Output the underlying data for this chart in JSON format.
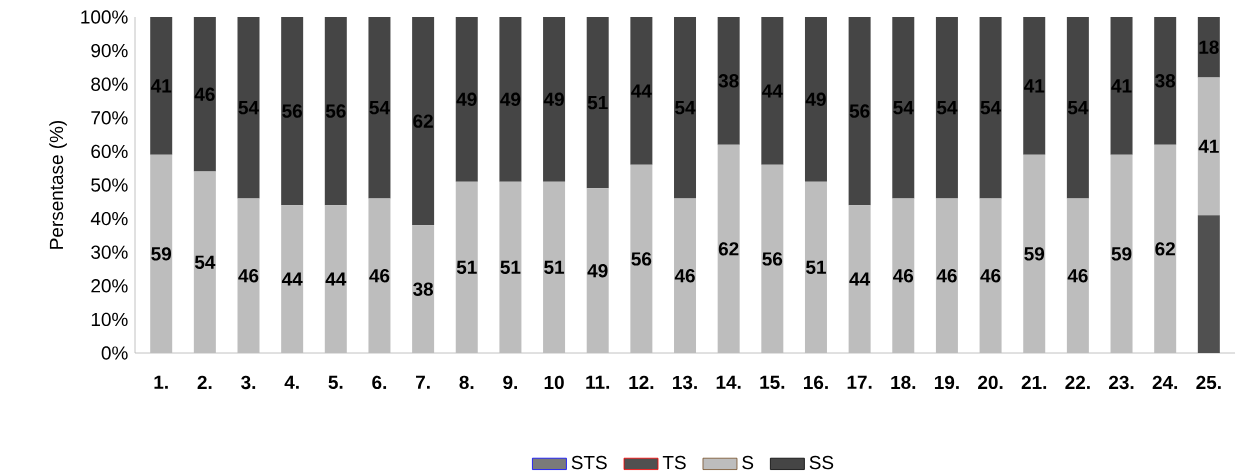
{
  "chart_data": {
    "type": "bar",
    "stacked": true,
    "ylabel": "Persentase (%)",
    "categories": [
      "1.",
      "2.",
      "3.",
      "4.",
      "5.",
      "6.",
      "7.",
      "8.",
      "9.",
      "10",
      "11.",
      "12.",
      "13.",
      "14.",
      "15.",
      "16.",
      "17.",
      "18.",
      "19.",
      "20.",
      "21.",
      "22.",
      "23.",
      "24.",
      "25."
    ],
    "ylim": [
      0,
      100
    ],
    "yticks": [
      {
        "value": 0,
        "label": "0%"
      },
      {
        "value": 10,
        "label": "10%"
      },
      {
        "value": 20,
        "label": "20%"
      },
      {
        "value": 30,
        "label": "30%"
      },
      {
        "value": 40,
        "label": "40%"
      },
      {
        "value": 50,
        "label": "50%"
      },
      {
        "value": 60,
        "label": "60%"
      },
      {
        "value": 70,
        "label": "70%"
      },
      {
        "value": 80,
        "label": "80%"
      },
      {
        "value": 90,
        "label": "90%"
      },
      {
        "value": 100,
        "label": "100%"
      }
    ],
    "legend": "bottom",
    "grid": false,
    "series": [
      {
        "name": "STS",
        "color": "#7a7a7a",
        "values": [
          0,
          0,
          0,
          0,
          0,
          0,
          0,
          0,
          0,
          0,
          0,
          0,
          0,
          0,
          0,
          0,
          0,
          0,
          0,
          0,
          0,
          0,
          0,
          0,
          0
        ]
      },
      {
        "name": "TS",
        "color": "#505050",
        "values": [
          0,
          0,
          0,
          0,
          0,
          0,
          0,
          0,
          0,
          0,
          0,
          0,
          0,
          0,
          0,
          0,
          0,
          0,
          0,
          0,
          0,
          0,
          0,
          0,
          41
        ]
      },
      {
        "name": "S",
        "color": "#bdbdbd",
        "values": [
          59,
          54,
          46,
          44,
          44,
          46,
          38,
          51,
          51,
          51,
          49,
          56,
          46,
          62,
          56,
          51,
          44,
          46,
          46,
          46,
          59,
          46,
          59,
          62,
          41
        ],
        "value_labels": [
          "59",
          "54",
          "46",
          "44",
          "44",
          "46",
          "38",
          "51",
          "51",
          "51",
          "49",
          "56",
          "46",
          "62",
          "56",
          "51",
          "44",
          "46",
          "46",
          "46",
          "59",
          "46",
          "59",
          "62",
          "41"
        ]
      },
      {
        "name": "SS",
        "color": "#454545",
        "values": [
          41,
          46,
          54,
          56,
          56,
          54,
          62,
          49,
          49,
          49,
          51,
          44,
          54,
          38,
          44,
          49,
          56,
          54,
          54,
          54,
          41,
          54,
          41,
          38,
          18
        ],
        "value_labels": [
          "41",
          "46",
          "54",
          "56",
          "56",
          "54",
          "62",
          "49",
          "49",
          "49",
          "51",
          "44",
          "54",
          "38",
          "44",
          "49",
          "56",
          "54",
          "54",
          "54",
          "41",
          "54",
          "41",
          "38",
          "18"
        ]
      }
    ]
  }
}
